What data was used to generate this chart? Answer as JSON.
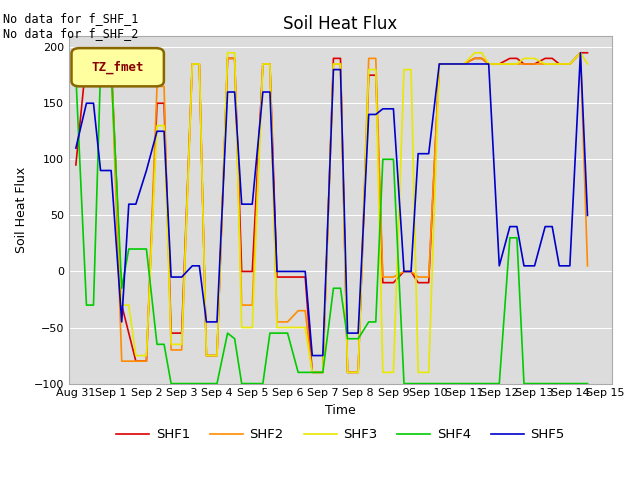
{
  "title": "Soil Heat Flux",
  "xlabel": "Time",
  "ylabel": "Soil Heat Flux",
  "ylim": [
    -100,
    210
  ],
  "yticks": [
    -100,
    -50,
    0,
    50,
    100,
    150,
    200
  ],
  "annotation_text": "No data for f_SHF_1\nNo data for f_SHF_2",
  "legend_label": "TZ_fmet",
  "bg_color": "#dcdcdc",
  "series": {
    "SHF1": {
      "color": "#dd0000",
      "x": [
        0.0,
        0.3,
        0.5,
        0.7,
        1.0,
        1.3,
        1.5,
        1.7,
        2.0,
        2.3,
        2.5,
        2.7,
        3.0,
        3.3,
        3.5,
        3.7,
        4.0,
        4.3,
        4.5,
        4.7,
        5.0,
        5.3,
        5.5,
        5.7,
        6.0,
        6.3,
        6.5,
        6.7,
        7.0,
        7.3,
        7.5,
        7.7,
        8.0,
        8.3,
        8.5,
        8.7,
        9.0,
        9.3,
        9.5,
        9.7,
        10.0,
        10.3,
        10.5,
        10.7,
        11.0,
        11.3,
        11.5,
        11.7,
        12.0,
        12.3,
        12.5,
        12.7,
        13.0,
        13.3,
        13.5,
        13.7,
        14.0,
        14.3,
        14.5
      ],
      "y": [
        95,
        190,
        190,
        190,
        190,
        -30,
        -55,
        -80,
        -80,
        150,
        150,
        -55,
        -55,
        185,
        185,
        -75,
        -75,
        190,
        190,
        0,
        0,
        185,
        185,
        -5,
        -5,
        -5,
        -5,
        -90,
        -90,
        190,
        190,
        -90,
        -90,
        175,
        175,
        -10,
        -10,
        0,
        0,
        -10,
        -10,
        185,
        185,
        185,
        185,
        190,
        190,
        185,
        185,
        190,
        190,
        185,
        185,
        190,
        190,
        185,
        185,
        195,
        195
      ]
    },
    "SHF2": {
      "color": "#ff8c00",
      "x": [
        0.0,
        0.3,
        0.5,
        0.7,
        1.0,
        1.3,
        1.5,
        1.7,
        2.0,
        2.3,
        2.5,
        2.7,
        3.0,
        3.3,
        3.5,
        3.7,
        4.0,
        4.3,
        4.5,
        4.7,
        5.0,
        5.3,
        5.5,
        5.7,
        6.0,
        6.3,
        6.5,
        6.7,
        7.0,
        7.3,
        7.5,
        7.7,
        8.0,
        8.3,
        8.5,
        8.7,
        9.0,
        9.3,
        9.5,
        9.7,
        10.0,
        10.3,
        10.5,
        10.7,
        11.0,
        11.3,
        11.5,
        11.7,
        12.0,
        12.3,
        12.5,
        12.7,
        13.0,
        13.3,
        13.5,
        13.7,
        14.0,
        14.3,
        14.5
      ],
      "y": [
        190,
        190,
        190,
        190,
        190,
        -80,
        -80,
        -80,
        -80,
        165,
        165,
        -70,
        -70,
        185,
        185,
        -75,
        -75,
        190,
        190,
        -30,
        -30,
        185,
        185,
        -45,
        -45,
        -35,
        -35,
        -90,
        -90,
        185,
        185,
        -90,
        -90,
        190,
        190,
        -5,
        -5,
        0,
        0,
        -5,
        -5,
        185,
        185,
        185,
        185,
        190,
        190,
        185,
        185,
        185,
        185,
        185,
        185,
        185,
        185,
        185,
        185,
        195,
        5
      ]
    },
    "SHF3": {
      "color": "#e8e800",
      "x": [
        0.0,
        0.3,
        0.5,
        0.7,
        1.0,
        1.3,
        1.5,
        1.7,
        2.0,
        2.3,
        2.5,
        2.7,
        3.0,
        3.3,
        3.5,
        3.7,
        4.0,
        4.3,
        4.5,
        4.7,
        5.0,
        5.3,
        5.5,
        5.7,
        6.0,
        6.3,
        6.5,
        6.7,
        7.0,
        7.3,
        7.5,
        7.7,
        8.0,
        8.3,
        8.5,
        8.7,
        9.0,
        9.3,
        9.5,
        9.7,
        10.0,
        10.3,
        10.5,
        10.7,
        11.0,
        11.3,
        11.5,
        11.7,
        12.0,
        12.3,
        12.5,
        12.7,
        13.0,
        13.3,
        13.5,
        13.7,
        14.0,
        14.3,
        14.5
      ],
      "y": [
        185,
        185,
        185,
        185,
        185,
        -30,
        -30,
        -75,
        -75,
        130,
        130,
        -65,
        -65,
        185,
        185,
        -75,
        -75,
        195,
        195,
        -50,
        -50,
        185,
        185,
        -50,
        -50,
        -50,
        -50,
        -90,
        -90,
        185,
        185,
        -90,
        -90,
        180,
        180,
        -90,
        -90,
        180,
        180,
        -90,
        -90,
        185,
        185,
        185,
        185,
        195,
        195,
        185,
        185,
        185,
        185,
        190,
        190,
        185,
        185,
        185,
        185,
        195,
        185
      ]
    },
    "SHF4": {
      "color": "#00cc00",
      "x": [
        0.0,
        0.3,
        0.5,
        0.7,
        1.0,
        1.3,
        1.5,
        1.7,
        2.0,
        2.3,
        2.5,
        2.7,
        3.0,
        3.3,
        3.5,
        3.7,
        4.0,
        4.3,
        4.5,
        4.7,
        5.0,
        5.3,
        5.5,
        5.7,
        6.0,
        6.3,
        6.5,
        6.7,
        7.0,
        7.3,
        7.5,
        7.7,
        8.0,
        8.3,
        8.5,
        8.7,
        9.0,
        9.3,
        9.5,
        9.7,
        10.0,
        10.3,
        10.5,
        10.7,
        11.0,
        11.3,
        11.5,
        11.7,
        12.0,
        12.3,
        12.5,
        12.7,
        13.0,
        13.3,
        13.5,
        13.7,
        14.0,
        14.3,
        14.5
      ],
      "y": [
        175,
        -30,
        -30,
        180,
        180,
        -15,
        20,
        20,
        20,
        -65,
        -65,
        -100,
        -100,
        -100,
        -100,
        -100,
        -100,
        -55,
        -60,
        -100,
        -100,
        -100,
        -55,
        -55,
        -55,
        -90,
        -90,
        -90,
        -90,
        -15,
        -15,
        -60,
        -60,
        -45,
        -45,
        100,
        100,
        -100,
        -100,
        -100,
        -100,
        -100,
        -100,
        -100,
        -100,
        -100,
        -100,
        -100,
        -100,
        30,
        30,
        -100,
        -100,
        -100,
        -100,
        -100,
        -100,
        -100,
        -100
      ]
    },
    "SHF5": {
      "color": "#0000cc",
      "x": [
        0.0,
        0.3,
        0.5,
        0.7,
        1.0,
        1.3,
        1.5,
        1.7,
        2.0,
        2.3,
        2.5,
        2.7,
        3.0,
        3.3,
        3.5,
        3.7,
        4.0,
        4.3,
        4.5,
        4.7,
        5.0,
        5.3,
        5.5,
        5.7,
        6.0,
        6.3,
        6.5,
        6.7,
        7.0,
        7.3,
        7.5,
        7.7,
        8.0,
        8.3,
        8.5,
        8.7,
        9.0,
        9.3,
        9.5,
        9.7,
        10.0,
        10.3,
        10.5,
        10.7,
        11.0,
        11.3,
        11.5,
        11.7,
        12.0,
        12.3,
        12.5,
        12.7,
        13.0,
        13.3,
        13.5,
        13.7,
        14.0,
        14.3,
        14.5
      ],
      "y": [
        110,
        150,
        150,
        90,
        90,
        -45,
        60,
        60,
        90,
        125,
        125,
        -5,
        -5,
        5,
        5,
        -45,
        -45,
        160,
        160,
        60,
        60,
        160,
        160,
        0,
        0,
        0,
        0,
        -75,
        -75,
        180,
        180,
        -55,
        -55,
        140,
        140,
        145,
        145,
        0,
        0,
        105,
        105,
        185,
        185,
        185,
        185,
        185,
        185,
        185,
        5,
        40,
        40,
        5,
        5,
        40,
        40,
        5,
        5,
        195,
        50
      ]
    }
  },
  "x_tick_labels": [
    "Aug 31",
    "Sep 1",
    "Sep 2",
    "Sep 3",
    "Sep 4",
    "Sep 5",
    "Sep 6",
    "Sep 7",
    "Sep 8",
    "Sep 9",
    "Sep 10",
    "Sep 11",
    "Sep 12",
    "Sep 13",
    "Sep 14",
    "Sep 15"
  ],
  "x_tick_positions": [
    0,
    1,
    2,
    3,
    4,
    5,
    6,
    7,
    8,
    9,
    10,
    11,
    12,
    13,
    14,
    15
  ]
}
